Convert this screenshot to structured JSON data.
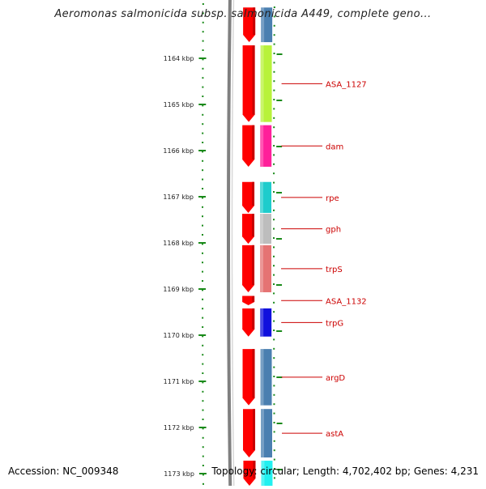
{
  "title": "Aeromonas salmonicida subsp. salmonicida A449, complete geno...",
  "accession": "Accession: NC_009348",
  "genome_info": "Topology: circular; Length: 4,702,402 bp; Genes: 4,231",
  "ruler": {
    "unit": "kbp",
    "ticks": [
      {
        "value": 1164,
        "label": "1164 kbp"
      },
      {
        "value": 1165,
        "label": "1165 kbp"
      },
      {
        "value": 1166,
        "label": "1166 kbp"
      },
      {
        "value": 1167,
        "label": "1167 kbp"
      },
      {
        "value": 1168,
        "label": "1168 kbp"
      },
      {
        "value": 1169,
        "label": "1169 kbp"
      },
      {
        "value": 1170,
        "label": "1170 kbp"
      },
      {
        "value": 1171,
        "label": "1171 kbp"
      },
      {
        "value": 1172,
        "label": "1172 kbp"
      },
      {
        "value": 1173,
        "label": "1173 kbp"
      }
    ]
  },
  "genes": [
    {
      "name": "",
      "start": 1162.9,
      "end": 1163.65,
      "color": "#4a7fb0"
    },
    {
      "name": "ASA_1127",
      "start": 1163.72,
      "end": 1165.38,
      "color": "#b8f23a"
    },
    {
      "name": "dam",
      "start": 1165.45,
      "end": 1166.35,
      "color": "#ff1f9a"
    },
    {
      "name": "rpe",
      "start": 1166.68,
      "end": 1167.35,
      "color": "#1ecccc"
    },
    {
      "name": "gph",
      "start": 1167.37,
      "end": 1168.02,
      "color": "#bdbdbd"
    },
    {
      "name": "trpS",
      "start": 1168.05,
      "end": 1169.07,
      "color": "#e57373"
    },
    {
      "name": "ASA_1132",
      "start": 1169.15,
      "end": 1169.35,
      "color": ""
    },
    {
      "name": "trpG",
      "start": 1169.42,
      "end": 1170.03,
      "color": "#1010dd"
    },
    {
      "name": "argD",
      "start": 1170.3,
      "end": 1171.52,
      "color": "#4a7fb0"
    },
    {
      "name": "astA",
      "start": 1171.6,
      "end": 1172.65,
      "color": "#4a7fb0"
    },
    {
      "name": "",
      "start": 1172.72,
      "end": 1173.3,
      "color": "#22f0f0"
    }
  ],
  "colors": {
    "forward_strand": "#ff0000",
    "backbone": "#808080",
    "tick": "#1a8a1a",
    "label": "#cc0000"
  }
}
